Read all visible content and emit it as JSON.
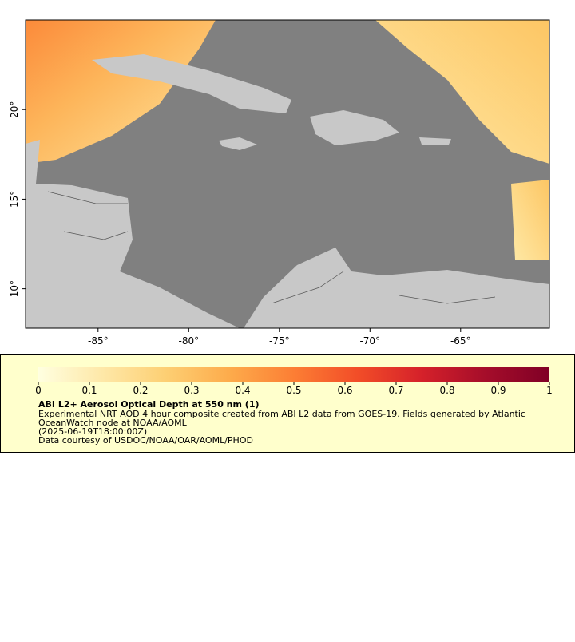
{
  "map": {
    "xlim": [
      -89,
      -60.1
    ],
    "ylim": [
      7.8,
      25
    ],
    "xticks": [
      {
        "value": -85,
        "label": "-85°"
      },
      {
        "value": -80,
        "label": "-80°"
      },
      {
        "value": -75,
        "label": "-75°"
      },
      {
        "value": -70,
        "label": "-70°"
      },
      {
        "value": -65,
        "label": "-65°"
      }
    ],
    "yticks": [
      {
        "value": 10,
        "label": "10°"
      },
      {
        "value": 15,
        "label": "15°"
      },
      {
        "value": 20,
        "label": "20°"
      }
    ]
  },
  "colorbar": {
    "range": [
      0,
      1
    ],
    "ticks": [
      0,
      0.1,
      0.2,
      0.3,
      0.4,
      0.5,
      0.6,
      0.7,
      0.8,
      0.9,
      1
    ],
    "colors": [
      "#ffffe0",
      "#fee8a8",
      "#fdcf73",
      "#fdab4b",
      "#fc7e34",
      "#f24d28",
      "#d5212a",
      "#a50d2a",
      "#800026"
    ]
  },
  "legend": {
    "title": "ABI L2+ Aerosol Optical Depth at 550 nm (1)",
    "lines": [
      "Experimental NRT AOD 4 hour composite created from ABI L2 data from GOES-19. Fields generated by Atlantic",
      "OceanWatch node at NOAA/AOML",
      "(2025-06-19T18:00:00Z)",
      "Data courtesy of USDOC/NOAA/OAR/AOML/PHOD"
    ]
  }
}
